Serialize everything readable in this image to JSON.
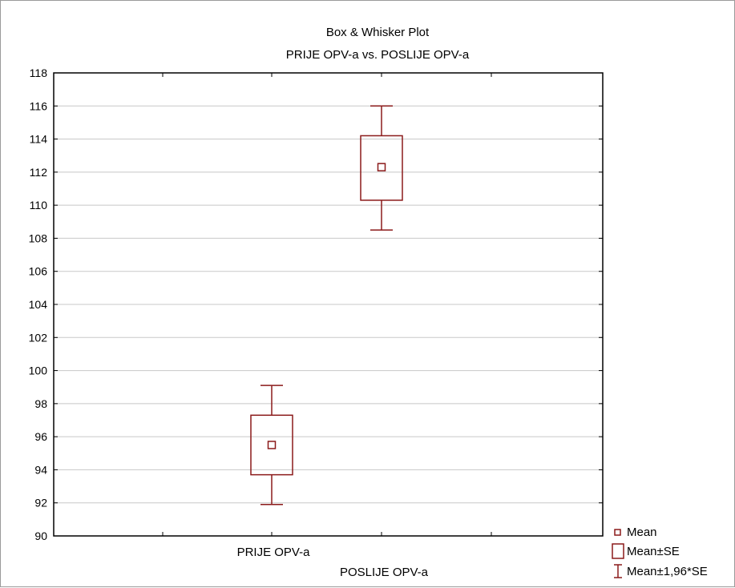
{
  "chart_data": {
    "type": "box",
    "title": "Box & Whisker Plot",
    "subtitle": "PRIJE OPV-a vs. POSLIJE OPV-a",
    "categories": [
      "PRIJE OPV-a",
      "POSLIJE OPV-a"
    ],
    "ylim": [
      90,
      118
    ],
    "yticks": [
      90,
      92,
      94,
      96,
      98,
      100,
      102,
      104,
      106,
      108,
      110,
      112,
      114,
      116,
      118
    ],
    "grid": true,
    "legend_position": "bottom-right",
    "series": [
      {
        "name": "Mean",
        "mean": [
          95.5,
          112.3
        ],
        "mean_minus_se": [
          93.7,
          110.3
        ],
        "mean_plus_se": [
          97.3,
          114.2
        ],
        "mean_minus_1_96_se": [
          91.9,
          108.5
        ],
        "mean_plus_1_96_se": [
          99.1,
          116.0
        ]
      }
    ],
    "legend": [
      {
        "label": "Mean",
        "symbol": "small-square"
      },
      {
        "label": "Mean±SE",
        "symbol": "box"
      },
      {
        "label": "Mean±1,96*SE",
        "symbol": "whisker"
      }
    ],
    "colors": {
      "marks": "#8b1a1a",
      "grid": "#c8c8c8",
      "axis": "#000000"
    }
  }
}
